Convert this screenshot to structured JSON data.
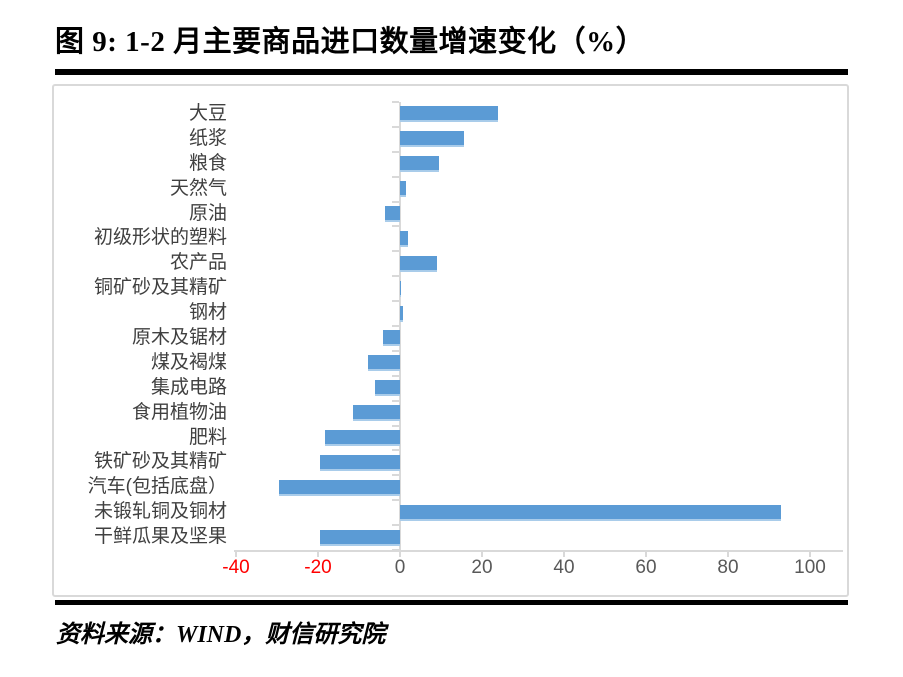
{
  "page": {
    "title": "图 9: 1-2 月主要商品进口数量增速变化（%）",
    "source": "资料来源：WIND，财信研究院"
  },
  "chart_data": {
    "type": "bar",
    "orientation": "horizontal",
    "title": "图 9: 1-2 月主要商品进口数量增速变化（%）",
    "categories": [
      "大豆",
      "纸浆",
      "粮食",
      "天然气",
      "原油",
      "初级形状的塑料",
      "农产品",
      "铜矿砂及其精矿",
      "钢材",
      "原木及锯材",
      "煤及褐煤",
      "集成电路",
      "食用植物油",
      "肥料",
      "铁矿砂及其精矿",
      "汽车(包括底盘）",
      "未锻轧铜及铜材",
      "干鲜瓜果及坚果"
    ],
    "values": [
      24,
      15.5,
      9.5,
      1.5,
      -3.7,
      2,
      9,
      0.3,
      0.7,
      -4.2,
      -7.8,
      -6,
      -11.5,
      -18.3,
      -19.5,
      -29.4,
      93,
      -19.4
    ],
    "xlabel": "",
    "ylabel": "",
    "xlim": [
      -40,
      108
    ],
    "x_ticks": [
      -40,
      -20,
      0,
      20,
      40,
      60,
      80,
      100
    ],
    "grid": false,
    "legend": false,
    "bar_color": "#5B9BD5",
    "bar_edge_color": "#A9CCEA",
    "tick_label_color": "#595959",
    "negative_tick_label_color": "#FF0000",
    "axis_color": "#D9D9D9"
  }
}
